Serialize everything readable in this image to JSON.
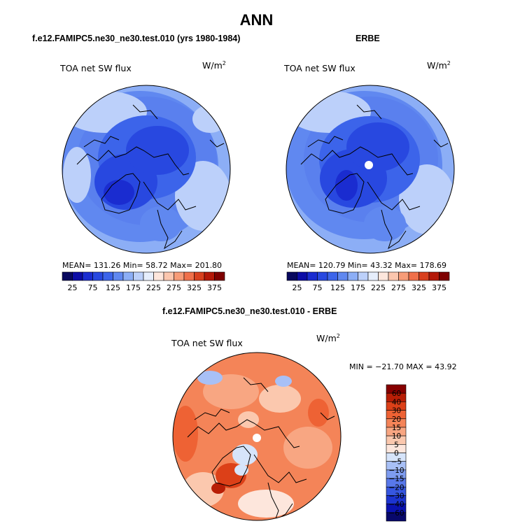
{
  "page": {
    "main_title": "ANN",
    "model_title": "f.e12.FAMIPC5.ne30_ne30.test.010 (yrs 1980-1984)",
    "obs_title": "ERBE",
    "diff_title": "f.e12.FAMIPC5.ne30_ne30.test.010 - ERBE"
  },
  "panels": {
    "model": {
      "label": "TOA net SW flux",
      "units": "W/m",
      "units_sup": "2",
      "stats": "MEAN= 131.26   Min=  58.72   Max= 201.80"
    },
    "obs": {
      "label": "TOA net SW flux",
      "units": "W/m",
      "units_sup": "2",
      "stats": "MEAN= 120.79   Min=  43.32   Max= 178.69"
    },
    "diff": {
      "label": "TOA net SW flux",
      "units": "W/m",
      "units_sup": "2",
      "stats": "MIN = −21.70 MAX =  43.92"
    }
  },
  "chart_data": [
    {
      "type": "heatmap",
      "title": "f.e12.FAMIPC5.ne30_ne30.test.010 (yrs 1980-1984)",
      "field": "TOA net SW flux",
      "units": "W/m^2",
      "projection": "north polar stereographic",
      "mean": 131.26,
      "min": 58.72,
      "max": 201.8,
      "colorbar_levels": [
        25,
        50,
        75,
        100,
        125,
        150,
        175,
        200,
        225,
        250,
        275,
        300,
        325,
        350,
        375
      ],
      "colorbar_tick_labels": [
        "25",
        "75",
        "125",
        "175",
        "225",
        "275",
        "325",
        "375"
      ],
      "colorbar_colors": [
        "#08085e",
        "#0c0ca6",
        "#1a2cd0",
        "#2848e0",
        "#3c64ea",
        "#6088f0",
        "#8caef6",
        "#bcd0fa",
        "#e6eefc",
        "#fde6dc",
        "#fbc6ae",
        "#f79c78",
        "#f0704a",
        "#d8401e",
        "#b41808",
        "#7e0000"
      ]
    },
    {
      "type": "heatmap",
      "title": "ERBE",
      "field": "TOA net SW flux",
      "units": "W/m^2",
      "projection": "north polar stereographic",
      "mean": 120.79,
      "min": 43.32,
      "max": 178.69,
      "colorbar_levels": [
        25,
        50,
        75,
        100,
        125,
        150,
        175,
        200,
        225,
        250,
        275,
        300,
        325,
        350,
        375
      ],
      "colorbar_tick_labels": [
        "25",
        "75",
        "125",
        "175",
        "225",
        "275",
        "325",
        "375"
      ],
      "colorbar_colors": [
        "#08085e",
        "#0c0ca6",
        "#1a2cd0",
        "#2848e0",
        "#3c64ea",
        "#6088f0",
        "#8caef6",
        "#bcd0fa",
        "#e6eefc",
        "#fde6dc",
        "#fbc6ae",
        "#f79c78",
        "#f0704a",
        "#d8401e",
        "#b41808",
        "#7e0000"
      ]
    },
    {
      "type": "heatmap",
      "title": "f.e12.FAMIPC5.ne30_ne30.test.010 - ERBE",
      "field": "TOA net SW flux",
      "units": "W/m^2",
      "projection": "north polar stereographic",
      "min": -21.7,
      "max": 43.92,
      "colorbar_levels": [
        -60,
        -40,
        -30,
        -20,
        -15,
        -10,
        -5,
        0,
        5,
        10,
        15,
        20,
        30,
        40,
        60
      ],
      "colorbar_tick_labels": [
        "−60",
        "−40",
        "−30",
        "−20",
        "−15",
        "−10",
        "−5",
        "0",
        "5",
        "10",
        "15",
        "20",
        "30",
        "40",
        "60"
      ],
      "colorbar_colors": [
        "#08086a",
        "#0a12b0",
        "#1c34d0",
        "#3656e0",
        "#5878ea",
        "#7e9cf0",
        "#a8c0f6",
        "#d6e4fa",
        "#fde6dc",
        "#fbc8ae",
        "#f8a682",
        "#f48458",
        "#ee6234",
        "#dc4018",
        "#b81e06",
        "#860000"
      ]
    }
  ]
}
